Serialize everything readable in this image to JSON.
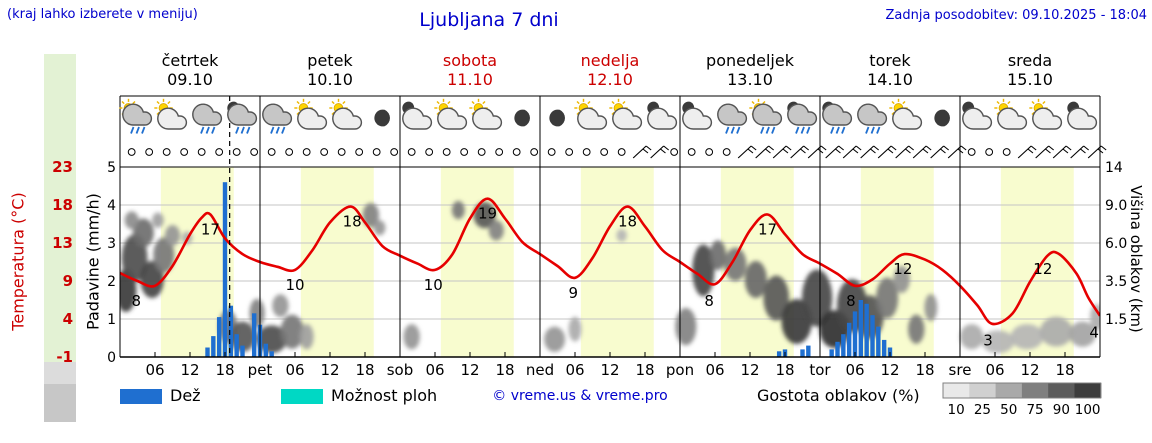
{
  "header": {
    "hint": "(kraj lahko izberete v meniju)",
    "title": "Ljubljana 7 dni",
    "updated": "Zadnja posodobitev: 09.10.2025 - 18:04"
  },
  "legend": {
    "rain": "Dež",
    "shower": "Možnost ploh",
    "copyright": "© vreme.us & vreme.pro",
    "cloud_title": "Gostota oblakov (%)",
    "cloud_scale": {
      "values": [
        "10",
        "25",
        "50",
        "75",
        "90",
        "100"
      ],
      "colors": [
        "#e9e9e9",
        "#d0d0d0",
        "#a9a9a9",
        "#7f7f7f",
        "#5c5c5c",
        "#3d3d3d"
      ]
    },
    "rain_color": "#1f6fd0",
    "shower_color": "#00d8c4"
  },
  "colors": {
    "accent_blue": "#0000cc",
    "accent_red": "#cc0000",
    "temp_curve": "#e60000",
    "day_band": "#f8fccf"
  },
  "chart_data": {
    "type": "meteogram",
    "location": "Ljubljana",
    "days": [
      {
        "name": "četrtek",
        "date": "09.10",
        "highlight": false
      },
      {
        "name": "petek",
        "date": "10.10",
        "highlight": false
      },
      {
        "name": "sobota",
        "date": "11.10",
        "highlight": true
      },
      {
        "name": "nedelja",
        "date": "12.10",
        "highlight": true
      },
      {
        "name": "ponedeljek",
        "date": "13.10",
        "highlight": false
      },
      {
        "name": "torek",
        "date": "14.10",
        "highlight": false
      },
      {
        "name": "sreda",
        "date": "15.10",
        "highlight": false
      }
    ],
    "x_hour_labels": [
      "06",
      "12",
      "18"
    ],
    "x_day_abbrs": [
      "pet",
      "sob",
      "ned",
      "pon",
      "tor",
      "sre"
    ],
    "temp_axis": {
      "label": "Temperatura (°C)",
      "ticks": [
        23,
        18,
        13,
        9,
        4,
        -1
      ],
      "min": -1,
      "max": 23
    },
    "precip_axis": {
      "label": "Padavine (mm/h)",
      "ticks": [
        5,
        4,
        3,
        2,
        1,
        0
      ],
      "min": 0,
      "max": 5
    },
    "cloud_axis": {
      "label": "Višina oblakov (km)",
      "ticks": [
        "14",
        "9.0",
        "6.0",
        "3.5",
        "1.5"
      ],
      "km_stops": [
        0,
        1.5,
        3.5,
        6,
        9,
        14
      ]
    },
    "now_hour": 18.8,
    "daylight": {
      "start": 7,
      "end": 19.5
    },
    "temperature_c": [
      [
        0,
        9.6
      ],
      [
        3,
        8.6
      ],
      [
        6,
        8
      ],
      [
        9,
        10.5
      ],
      [
        12,
        14.5
      ],
      [
        14,
        16.6
      ],
      [
        15.5,
        17
      ],
      [
        18,
        14
      ],
      [
        21,
        12
      ],
      [
        24,
        11
      ],
      [
        27,
        10.4
      ],
      [
        30,
        10
      ],
      [
        33,
        12.5
      ],
      [
        36,
        16
      ],
      [
        39.5,
        18
      ],
      [
        42,
        16
      ],
      [
        45,
        13
      ],
      [
        48,
        11.8
      ],
      [
        51,
        10.8
      ],
      [
        54,
        10
      ],
      [
        57,
        12
      ],
      [
        60,
        16.5
      ],
      [
        63,
        19
      ],
      [
        66,
        16.5
      ],
      [
        69,
        13.5
      ],
      [
        72,
        12
      ],
      [
        75,
        10.5
      ],
      [
        78,
        9
      ],
      [
        81,
        11.5
      ],
      [
        84,
        15.5
      ],
      [
        87,
        18
      ],
      [
        90,
        15.5
      ],
      [
        93,
        12.5
      ],
      [
        96,
        11
      ],
      [
        99,
        9.5
      ],
      [
        102,
        8.2
      ],
      [
        105,
        11
      ],
      [
        108,
        15
      ],
      [
        111,
        17
      ],
      [
        114,
        14.5
      ],
      [
        117,
        12
      ],
      [
        120,
        10.8
      ],
      [
        123,
        9.5
      ],
      [
        126,
        8
      ],
      [
        129,
        8.8
      ],
      [
        132,
        10.8
      ],
      [
        134.5,
        12
      ],
      [
        138,
        11.3
      ],
      [
        141,
        10
      ],
      [
        144,
        8
      ],
      [
        147,
        5.5
      ],
      [
        149.5,
        3.2
      ],
      [
        153,
        4.5
      ],
      [
        156,
        8.5
      ],
      [
        159,
        11.8
      ],
      [
        161,
        12
      ],
      [
        164,
        9.5
      ],
      [
        166,
        6.5
      ],
      [
        168,
        4.2
      ]
    ],
    "temp_point_labels": [
      [
        2.8,
        8
      ],
      [
        15.5,
        17
      ],
      [
        30,
        10
      ],
      [
        39.8,
        18
      ],
      [
        53.7,
        10
      ],
      [
        63,
        19
      ],
      [
        77.7,
        9
      ],
      [
        87,
        18
      ],
      [
        101,
        8
      ],
      [
        111,
        17
      ],
      [
        125.3,
        8
      ],
      [
        134.2,
        12
      ],
      [
        148.8,
        3
      ],
      [
        158.2,
        12
      ],
      [
        167,
        4
      ]
    ],
    "rain_mm_h": [
      [
        15,
        0.25
      ],
      [
        16,
        0.55
      ],
      [
        17,
        1.05
      ],
      [
        18,
        4.6
      ],
      [
        19,
        1.35
      ],
      [
        20,
        0.6
      ],
      [
        21,
        0.3
      ],
      [
        23,
        1.15
      ],
      [
        24,
        0.85
      ],
      [
        25,
        0.35
      ],
      [
        26,
        0.15
      ],
      [
        113,
        0.15
      ],
      [
        114,
        0.2
      ],
      [
        117,
        0.2
      ],
      [
        118,
        0.3
      ],
      [
        122,
        0.2
      ],
      [
        123,
        0.4
      ],
      [
        124,
        0.6
      ],
      [
        125,
        0.9
      ],
      [
        126,
        1.2
      ],
      [
        127,
        1.5
      ],
      [
        128,
        1.4
      ],
      [
        129,
        1.1
      ],
      [
        130,
        0.8
      ],
      [
        131,
        0.45
      ],
      [
        132,
        0.25
      ]
    ],
    "cloud_blobs": [
      [
        1,
        3,
        1.8,
        1.2,
        85
      ],
      [
        2.5,
        5,
        2.2,
        1.6,
        75
      ],
      [
        4,
        6.8,
        1.8,
        1.1,
        60
      ],
      [
        2,
        7.8,
        1.2,
        0.7,
        45
      ],
      [
        5.5,
        3.6,
        2.0,
        1.1,
        80
      ],
      [
        7.5,
        5.2,
        1.8,
        1.2,
        55
      ],
      [
        9,
        6.6,
        1.3,
        0.8,
        40
      ],
      [
        6.5,
        7.8,
        1.0,
        0.6,
        35
      ],
      [
        11.5,
        6.4,
        0.9,
        0.5,
        30
      ],
      [
        18.5,
        1.2,
        1.6,
        0.7,
        55
      ],
      [
        21,
        0.8,
        2.2,
        0.6,
        70
      ],
      [
        23.5,
        1.8,
        1.3,
        0.7,
        50
      ],
      [
        26,
        0.7,
        2.6,
        0.55,
        75
      ],
      [
        29.5,
        1.0,
        2.0,
        0.7,
        55
      ],
      [
        27.5,
        2.2,
        1.4,
        0.6,
        40
      ],
      [
        32,
        0.8,
        1.2,
        0.5,
        35
      ],
      [
        43,
        8.2,
        1.4,
        1.0,
        50
      ],
      [
        44.5,
        7.2,
        1.0,
        0.6,
        40
      ],
      [
        50,
        0.8,
        1.4,
        0.5,
        40
      ],
      [
        58,
        8.6,
        1.1,
        0.8,
        55
      ],
      [
        62.5,
        8.2,
        1.9,
        1.1,
        70
      ],
      [
        64.5,
        7.0,
        1.3,
        0.8,
        50
      ],
      [
        74.5,
        0.7,
        1.8,
        0.5,
        40
      ],
      [
        78,
        1.1,
        1.1,
        0.5,
        30
      ],
      [
        86,
        6.6,
        0.9,
        0.5,
        25
      ],
      [
        97,
        1.2,
        1.8,
        0.8,
        50
      ],
      [
        100,
        4.2,
        1.9,
        1.6,
        78
      ],
      [
        102.5,
        5.2,
        1.4,
        1.0,
        60
      ],
      [
        105.5,
        4.6,
        1.9,
        1.1,
        55
      ],
      [
        109,
        3.6,
        1.9,
        1.1,
        62
      ],
      [
        112.5,
        2.6,
        2.2,
        1.2,
        70
      ],
      [
        116,
        1.4,
        2.6,
        1.0,
        85
      ],
      [
        119.5,
        2.6,
        2.6,
        1.5,
        78
      ],
      [
        122.5,
        1.1,
        2.6,
        0.8,
        90
      ],
      [
        125.5,
        2.2,
        2.6,
        1.3,
        78
      ],
      [
        128.5,
        1.6,
        2.4,
        1.0,
        72
      ],
      [
        131.5,
        2.6,
        1.9,
        1.1,
        55
      ],
      [
        134,
        3.6,
        1.4,
        0.8,
        42
      ],
      [
        136.5,
        1.1,
        1.4,
        0.6,
        55
      ],
      [
        139,
        2.1,
        1.1,
        0.7,
        42
      ],
      [
        146,
        0.8,
        2.0,
        0.5,
        30
      ],
      [
        150.5,
        0.6,
        2.8,
        0.45,
        25
      ],
      [
        155.5,
        0.8,
        2.8,
        0.5,
        25
      ],
      [
        160.5,
        1.0,
        2.8,
        0.6,
        30
      ],
      [
        165,
        0.9,
        2.3,
        0.5,
        33
      ],
      [
        167.5,
        1.6,
        1.2,
        0.6,
        28
      ]
    ],
    "weather_icons": [
      [
        3,
        "sun-rain"
      ],
      [
        9,
        "sun-cloud"
      ],
      [
        15,
        "rain"
      ],
      [
        21,
        "moon-rain"
      ],
      [
        27,
        "rain"
      ],
      [
        33,
        "sun-cloud"
      ],
      [
        39,
        "sun-cloud"
      ],
      [
        45,
        "moon"
      ],
      [
        51,
        "moon-cloud"
      ],
      [
        57,
        "sun-cloud"
      ],
      [
        63,
        "sun-cloud"
      ],
      [
        69,
        "moon"
      ],
      [
        75,
        "moon"
      ],
      [
        81,
        "sun-cloud"
      ],
      [
        87,
        "sun-cloud"
      ],
      [
        93,
        "moon-cloud"
      ],
      [
        99,
        "moon-cloud"
      ],
      [
        105,
        "rain"
      ],
      [
        111,
        "sun-rain"
      ],
      [
        117,
        "moon-rain"
      ],
      [
        123,
        "moon-rain"
      ],
      [
        129,
        "rain"
      ],
      [
        135,
        "sun-cloud"
      ],
      [
        141,
        "moon"
      ],
      [
        147,
        "moon-cloud"
      ],
      [
        153,
        "sun-cloud"
      ],
      [
        159,
        "sun-cloud"
      ],
      [
        165,
        "moon-cloud"
      ]
    ],
    "wind": [
      [
        2,
        "c"
      ],
      [
        5,
        "c"
      ],
      [
        8,
        "c"
      ],
      [
        11,
        "c"
      ],
      [
        14,
        "c"
      ],
      [
        17,
        "c"
      ],
      [
        20,
        "c"
      ],
      [
        23,
        "c"
      ],
      [
        26,
        "c"
      ],
      [
        29,
        "c"
      ],
      [
        32,
        "c"
      ],
      [
        35,
        "c"
      ],
      [
        38,
        "c"
      ],
      [
        41,
        "c"
      ],
      [
        44,
        "c"
      ],
      [
        47,
        "c"
      ],
      [
        50,
        "c"
      ],
      [
        53,
        "c"
      ],
      [
        56,
        "c"
      ],
      [
        59,
        "c"
      ],
      [
        62,
        "c"
      ],
      [
        65,
        "c"
      ],
      [
        68,
        "c"
      ],
      [
        71,
        "c"
      ],
      [
        74,
        "c"
      ],
      [
        77,
        "c"
      ],
      [
        80,
        "c"
      ],
      [
        83,
        "c"
      ],
      [
        86,
        "c"
      ],
      [
        89,
        "b"
      ],
      [
        92,
        "b"
      ],
      [
        95,
        "c"
      ],
      [
        98,
        "c"
      ],
      [
        101,
        "c"
      ],
      [
        104,
        "c"
      ],
      [
        107,
        "b"
      ],
      [
        110,
        "b"
      ],
      [
        113,
        "b"
      ],
      [
        116,
        "b"
      ],
      [
        119,
        "b"
      ],
      [
        122,
        "b"
      ],
      [
        125,
        "b"
      ],
      [
        128,
        "b"
      ],
      [
        131,
        "b"
      ],
      [
        134,
        "b"
      ],
      [
        137,
        "b"
      ],
      [
        140,
        "b"
      ],
      [
        143,
        "b"
      ],
      [
        146,
        "c"
      ],
      [
        149,
        "c"
      ],
      [
        152,
        "c"
      ],
      [
        155,
        "b"
      ],
      [
        158,
        "b"
      ],
      [
        161,
        "b"
      ],
      [
        164,
        "b"
      ],
      [
        167,
        "b"
      ]
    ]
  }
}
